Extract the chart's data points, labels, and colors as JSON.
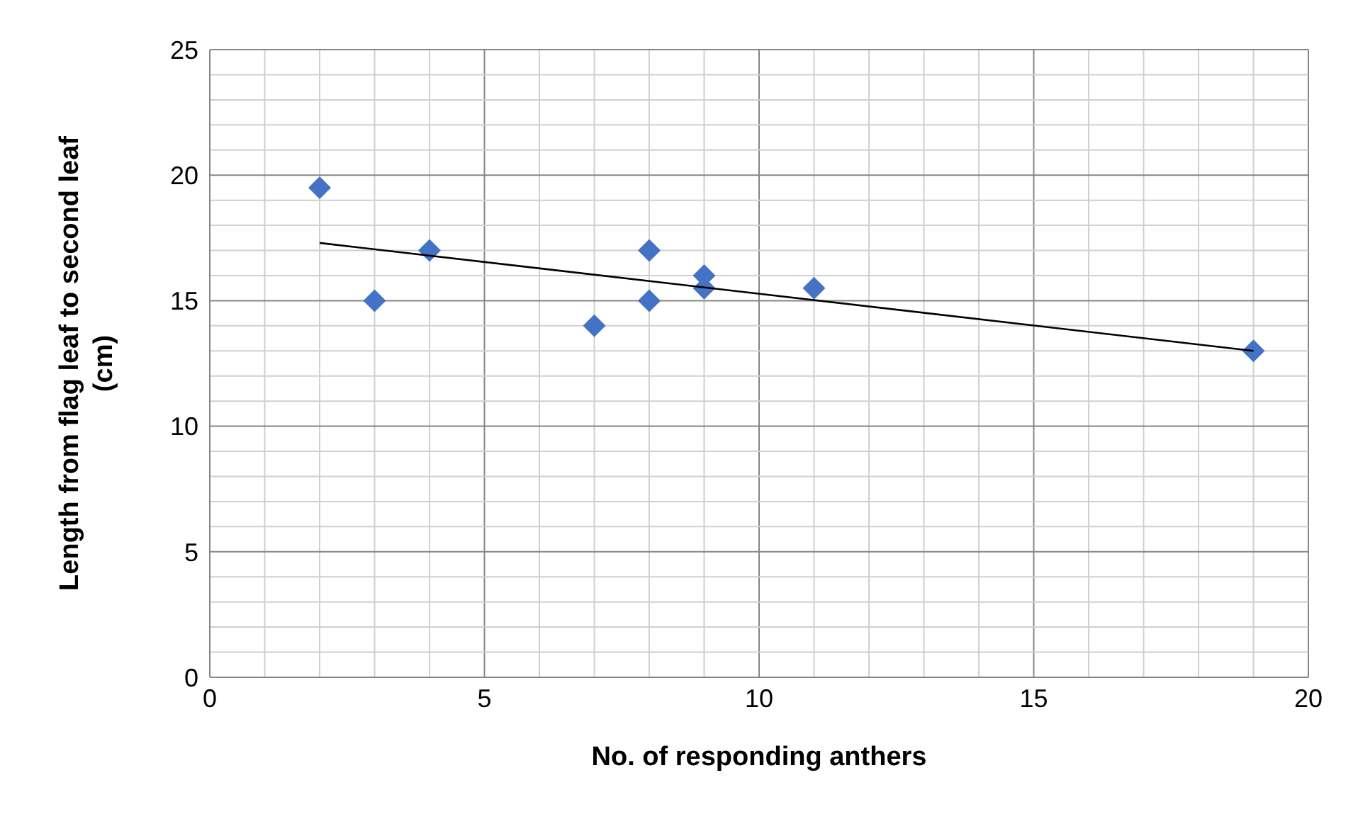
{
  "chart_data": {
    "type": "scatter",
    "xlabel": "No. of responding anthers",
    "ylabel": "Length from flag leaf to second leaf (cm)",
    "x": [
      2,
      3,
      4,
      7,
      8,
      8,
      9,
      9,
      11,
      19
    ],
    "series": [
      {
        "color": "#4472c4",
        "marker": "diamond",
        "values": [
          19.5,
          15,
          17,
          14,
          17,
          15,
          16,
          15.5,
          15.5,
          13
        ]
      },
      {
        "type": "line",
        "color": "#000000",
        "marker": "none",
        "x": [
          2,
          19
        ],
        "values": [
          17.3,
          13.0
        ]
      }
    ],
    "xlim": [
      0,
      20
    ],
    "ylim": [
      0,
      25
    ],
    "xticks": [
      0,
      {
        "value": 1,
        "label": null
      },
      {
        "value": 2,
        "label": null
      },
      {
        "value": 3,
        "label": null
      },
      {
        "value": 4,
        "label": null
      },
      5,
      {
        "value": 6,
        "label": null
      },
      {
        "value": 7,
        "label": null
      },
      {
        "value": 8,
        "label": null
      },
      {
        "value": 9,
        "label": null
      },
      10,
      {
        "value": 11,
        "label": null
      },
      {
        "value": 12,
        "label": null
      },
      {
        "value": 13,
        "label": null
      },
      {
        "value": 14,
        "label": null
      },
      15,
      {
        "value": 16,
        "label": null
      },
      {
        "value": 17,
        "label": null
      },
      {
        "value": 18,
        "label": null
      },
      {
        "value": 19,
        "label": null
      },
      20
    ],
    "yticks": [
      0,
      {
        "value": 1,
        "label": null
      },
      {
        "value": 2,
        "label": null
      },
      {
        "value": 3,
        "label": null
      },
      {
        "value": 4,
        "label": null
      },
      5,
      {
        "value": 6,
        "label": null
      },
      {
        "value": 7,
        "label": null
      },
      {
        "value": 8,
        "label": null
      },
      {
        "value": 9,
        "label": null
      },
      10,
      {
        "value": 11,
        "label": null
      },
      {
        "value": 12,
        "label": null
      },
      {
        "value": 13,
        "label": null
      },
      {
        "value": 14,
        "label": null
      },
      15,
      {
        "value": 16,
        "label": null
      },
      {
        "value": 17,
        "label": null
      },
      {
        "value": 18,
        "label": null
      },
      {
        "value": 19,
        "label": null
      },
      20,
      {
        "value": 21,
        "label": null
      },
      {
        "value": 22,
        "label": null
      },
      {
        "value": 23,
        "label": null
      },
      {
        "value": 24,
        "label": null
      },
      25
    ],
    "grid": true,
    "legend": false
  }
}
